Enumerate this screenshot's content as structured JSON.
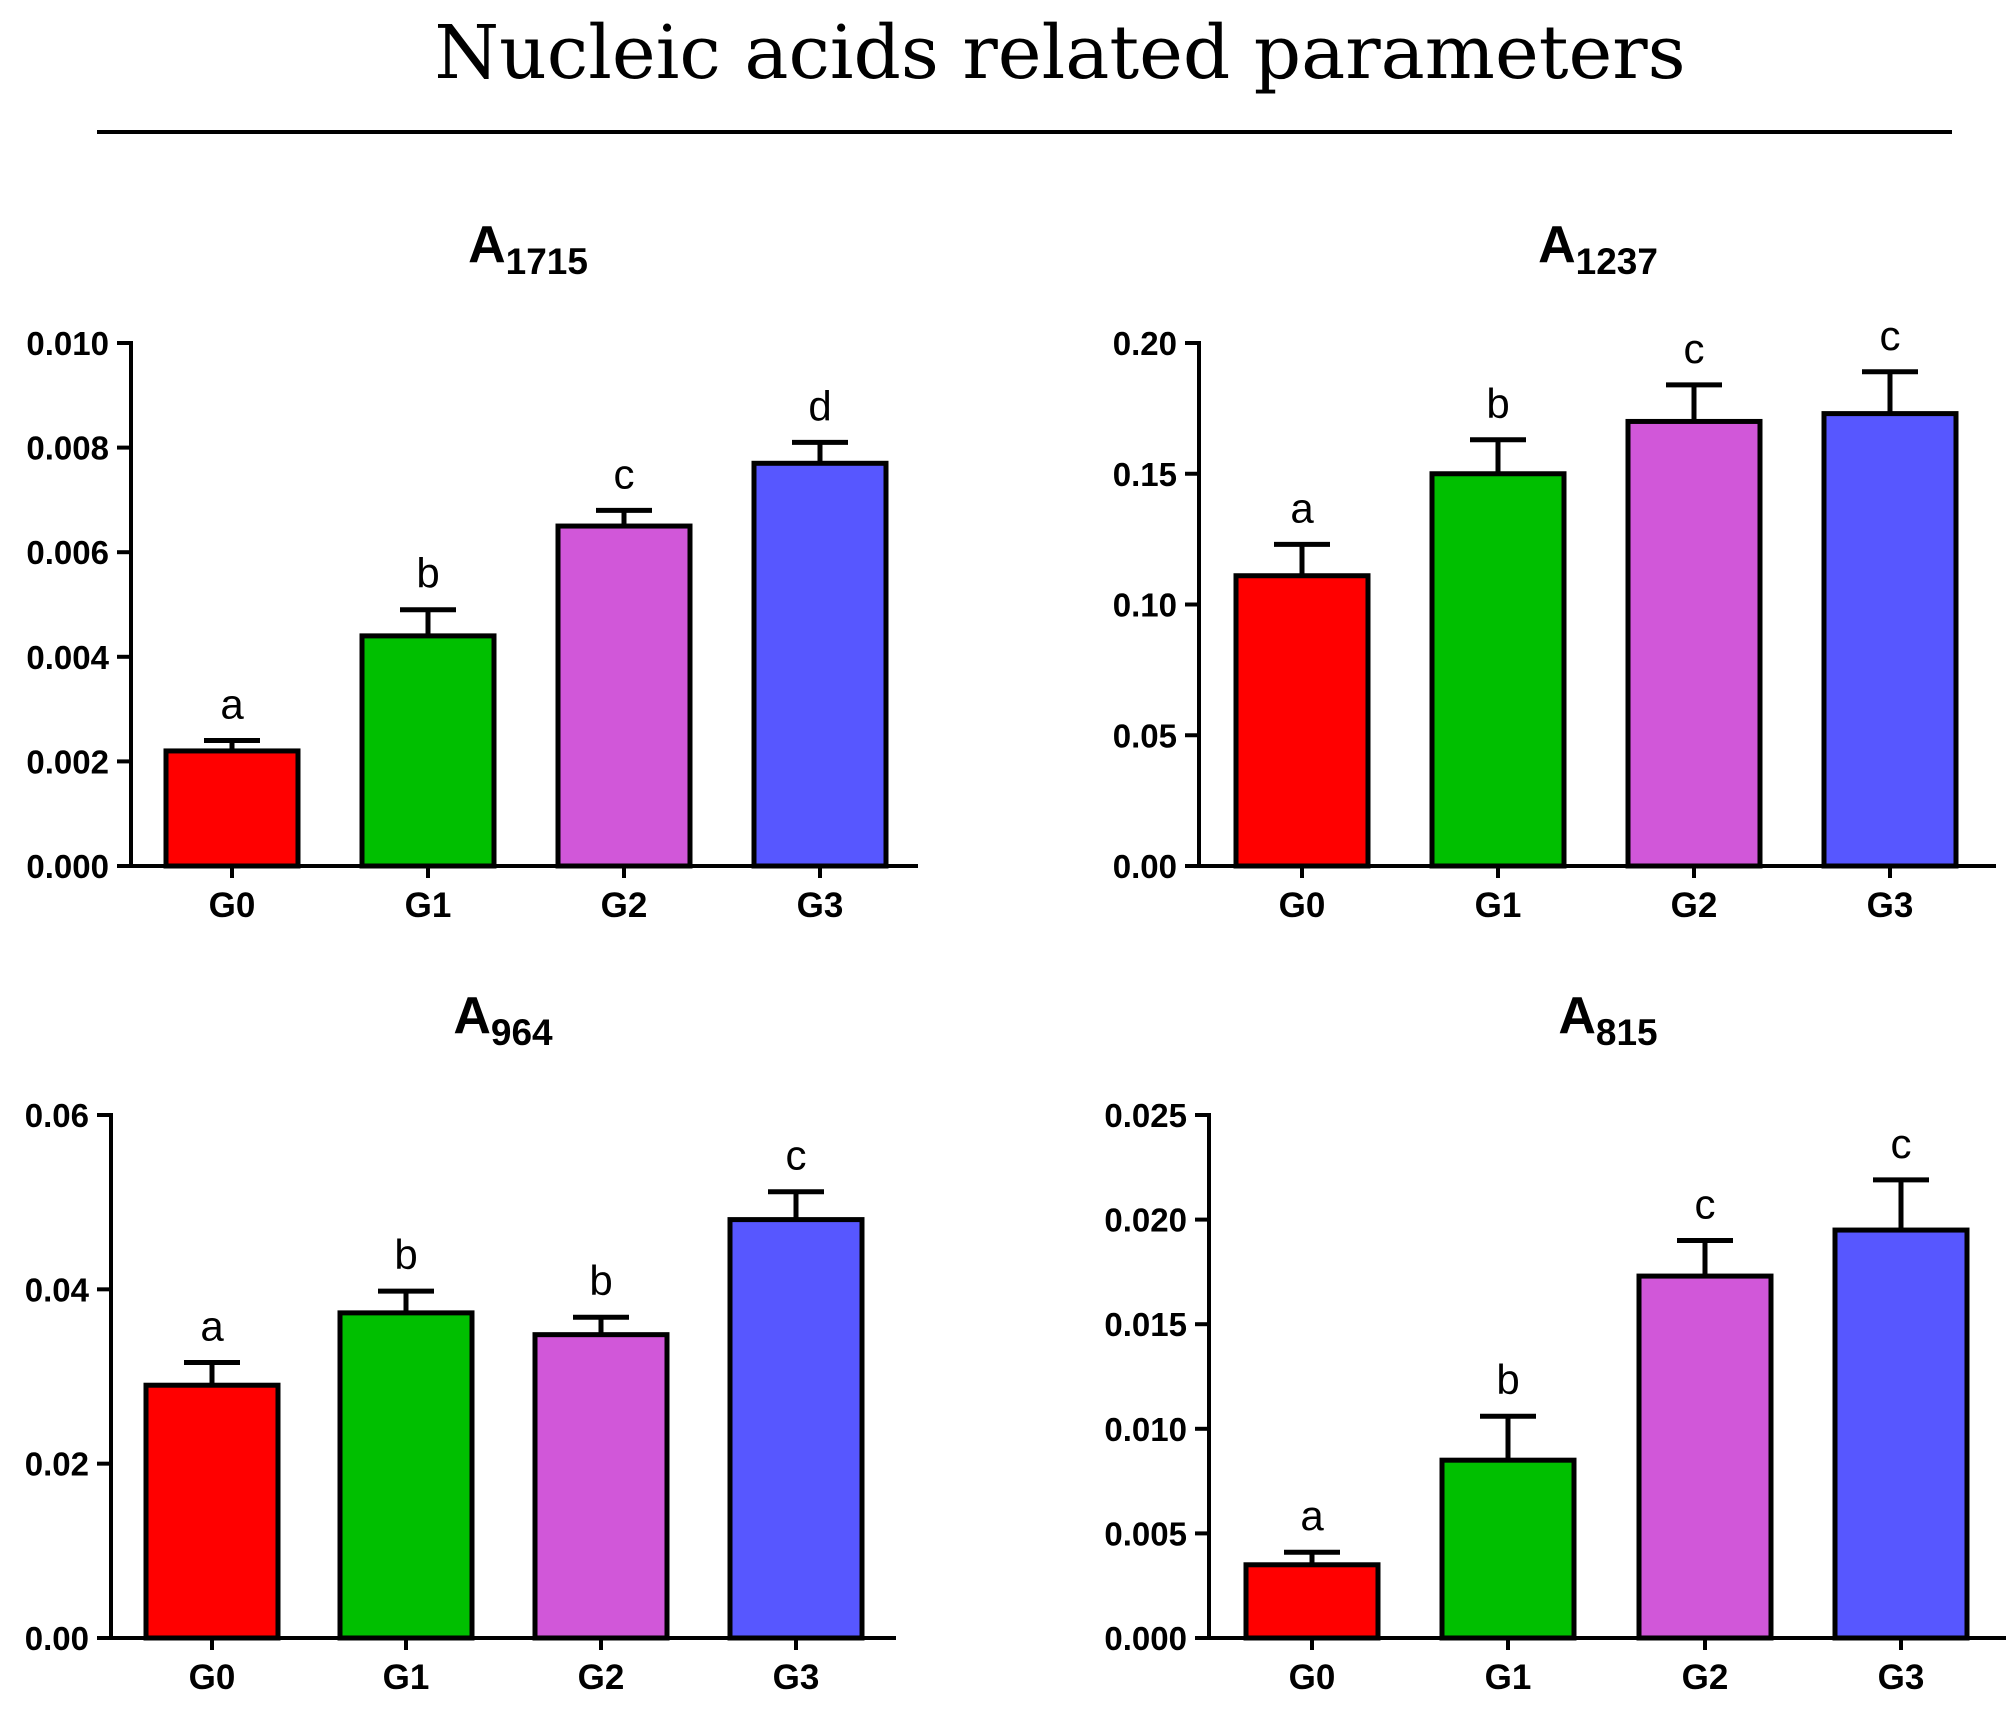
{
  "title": "Nucleic acids related parameters",
  "colors": {
    "G0": "#ff0000",
    "G1": "#00bf00",
    "G2": "#d157d9",
    "G3": "#5757ff",
    "stroke": "#000000"
  },
  "chart_data": [
    {
      "type": "bar",
      "title": "A",
      "title_sub": "1715",
      "categories": [
        "G0",
        "G1",
        "G2",
        "G3"
      ],
      "values": [
        0.0022,
        0.0044,
        0.0065,
        0.0077
      ],
      "errors": [
        0.0002,
        0.0005,
        0.0003,
        0.0004
      ],
      "labels": [
        "a",
        "b",
        "c",
        "d"
      ],
      "ylim": [
        0,
        0.01
      ],
      "yticks": [
        0.0,
        0.002,
        0.004,
        0.006,
        0.008,
        0.01
      ],
      "ytick_labels": [
        "0.000",
        "0.002",
        "0.004",
        "0.006",
        "0.008",
        "0.010"
      ],
      "xlabel": "",
      "ylabel": ""
    },
    {
      "type": "bar",
      "title": "A",
      "title_sub": "1237",
      "categories": [
        "G0",
        "G1",
        "G2",
        "G3"
      ],
      "values": [
        0.111,
        0.15,
        0.17,
        0.173
      ],
      "errors": [
        0.012,
        0.013,
        0.014,
        0.016
      ],
      "labels": [
        "a",
        "b",
        "c",
        "c"
      ],
      "ylim": [
        0,
        0.2
      ],
      "yticks": [
        0.0,
        0.05,
        0.1,
        0.15,
        0.2
      ],
      "ytick_labels": [
        "0.00",
        "0.05",
        "0.10",
        "0.15",
        "0.20"
      ],
      "xlabel": "",
      "ylabel": ""
    },
    {
      "type": "bar",
      "title": "A",
      "title_sub": "964",
      "categories": [
        "G0",
        "G1",
        "G2",
        "G3"
      ],
      "values": [
        0.029,
        0.0373,
        0.0348,
        0.048
      ],
      "errors": [
        0.0026,
        0.0025,
        0.002,
        0.0032
      ],
      "labels": [
        "a",
        "b",
        "b",
        "c"
      ],
      "ylim": [
        0,
        0.06
      ],
      "yticks": [
        0.0,
        0.02,
        0.04,
        0.06
      ],
      "ytick_labels": [
        "0.00",
        "0.02",
        "0.04",
        "0.06"
      ],
      "xlabel": "",
      "ylabel": ""
    },
    {
      "type": "bar",
      "title": "A",
      "title_sub": "815",
      "categories": [
        "G0",
        "G1",
        "G2",
        "G3"
      ],
      "values": [
        0.0035,
        0.0085,
        0.0173,
        0.0195
      ],
      "errors": [
        0.0006,
        0.0021,
        0.0017,
        0.0024
      ],
      "labels": [
        "a",
        "b",
        "c",
        "c"
      ],
      "ylim": [
        0,
        0.025
      ],
      "yticks": [
        0.0,
        0.005,
        0.01,
        0.015,
        0.02,
        0.025
      ],
      "ytick_labels": [
        "0.000",
        "0.005",
        "0.010",
        "0.015",
        "0.020",
        "0.025"
      ],
      "xlabel": "",
      "ylabel": ""
    }
  ]
}
